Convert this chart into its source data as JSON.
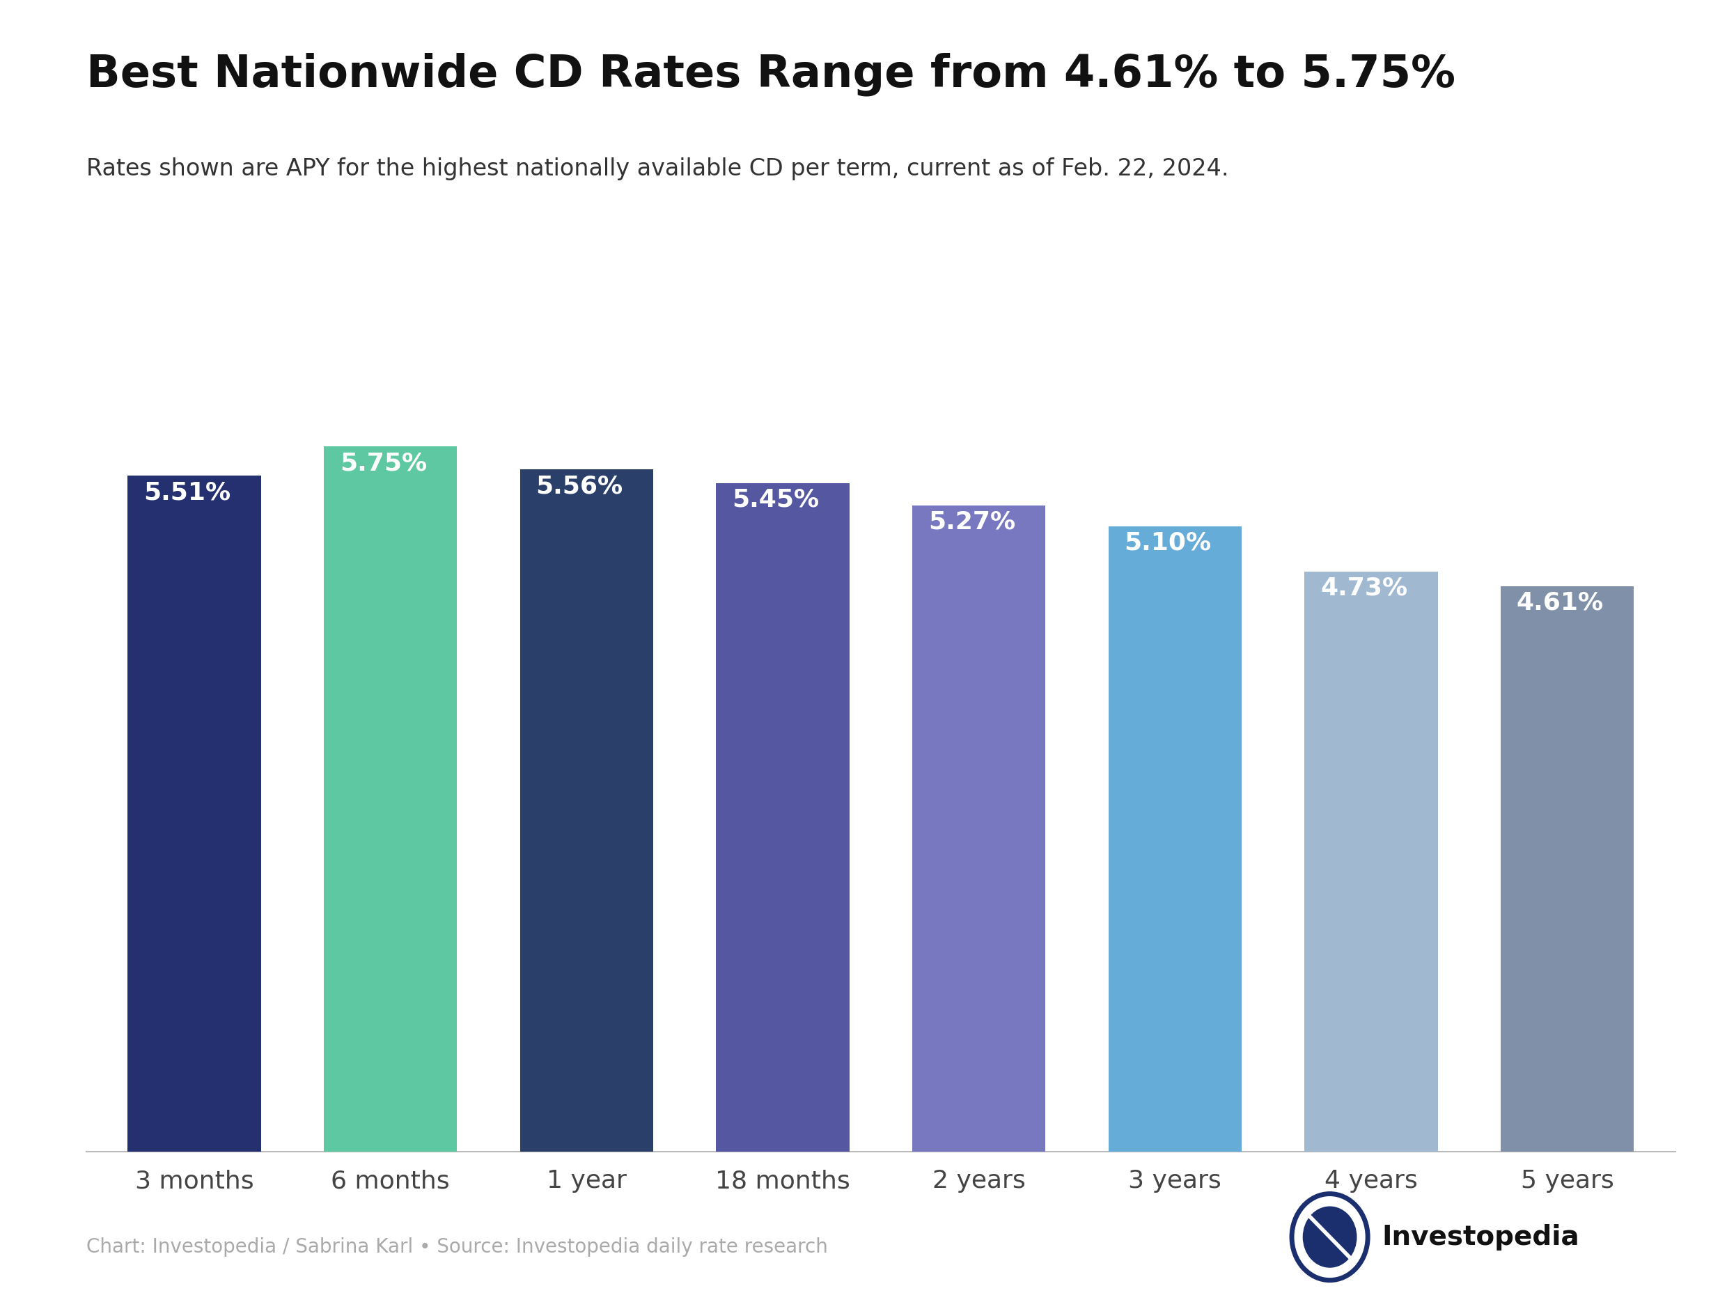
{
  "title": "Best Nationwide CD Rates Range from 4.61% to 5.75%",
  "subtitle": "Rates shown are APY for the highest nationally available CD per term, current as of Feb. 22, 2024.",
  "categories": [
    "3 months",
    "6 months",
    "1 year",
    "18 months",
    "2 years",
    "3 years",
    "4 years",
    "5 years"
  ],
  "values": [
    5.51,
    5.75,
    5.56,
    5.45,
    5.27,
    5.1,
    4.73,
    4.61
  ],
  "bar_colors": [
    "#243070",
    "#5EC8A2",
    "#2B3F6B",
    "#5558A0",
    "#7878C0",
    "#65ACD8",
    "#A0B8D0",
    "#8090A8"
  ],
  "label_colors": [
    "white",
    "white",
    "white",
    "white",
    "white",
    "white",
    "white",
    "white"
  ],
  "background_color": "#ffffff",
  "title_fontsize": 46,
  "subtitle_fontsize": 24,
  "label_fontsize": 26,
  "xlabel_fontsize": 26,
  "footer_text": "Chart: Investopedia / Sabrina Karl • Source: Investopedia daily rate research",
  "footer_fontsize": 20,
  "ylim": [
    0,
    6.4
  ],
  "bar_width": 0.68
}
